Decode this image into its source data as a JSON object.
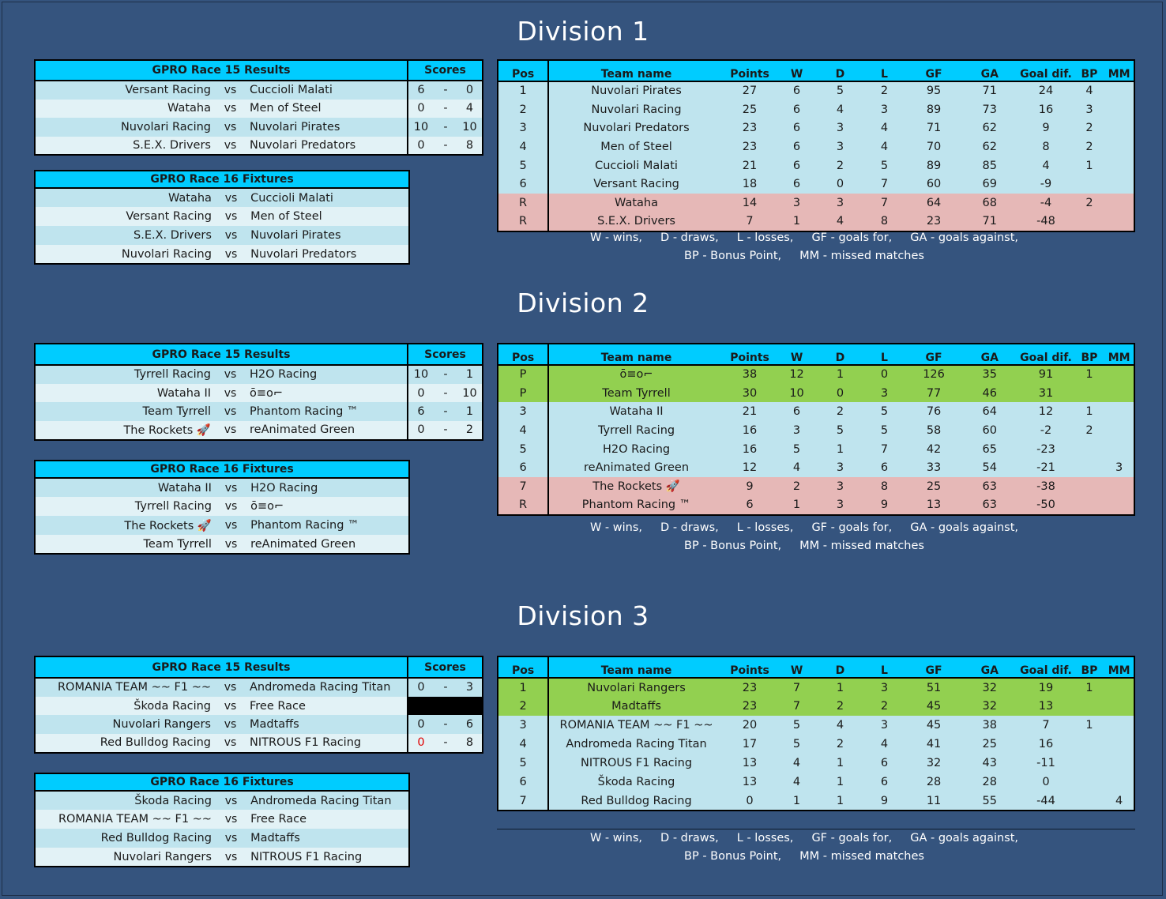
{
  "divisions": [
    {
      "title": "Division 1",
      "results": {
        "header": "GPRO Race 15  Results",
        "scores_header": "Scores",
        "rows": [
          {
            "home": "Versant Racing",
            "vs": "vs",
            "away": "Cuccioli Malati",
            "s1": "6",
            "dash": "-",
            "s2": "0"
          },
          {
            "home": "Wataha",
            "vs": "vs",
            "away": "Men of Steel",
            "s1": "0",
            "dash": "-",
            "s2": "4"
          },
          {
            "home": "Nuvolari Racing",
            "vs": "vs",
            "away": "Nuvolari Pirates",
            "s1": "10",
            "dash": "-",
            "s2": "10"
          },
          {
            "home": "S.E.X. Drivers",
            "vs": "vs",
            "away": "Nuvolari Predators",
            "s1": "0",
            "dash": "-",
            "s2": "8"
          }
        ]
      },
      "fixtures": {
        "header": "GPRO Race 16  Fixtures",
        "rows": [
          {
            "home": "Wataha",
            "vs": "vs",
            "away": "Cuccioli Malati"
          },
          {
            "home": "Versant Racing",
            "vs": "vs",
            "away": "Men of Steel"
          },
          {
            "home": "S.E.X. Drivers",
            "vs": "vs",
            "away": "Nuvolari Pirates"
          },
          {
            "home": "Nuvolari Racing",
            "vs": "vs",
            "away": "Nuvolari Predators"
          }
        ]
      },
      "standings": {
        "headers": [
          "Pos",
          "Team name",
          "Points",
          "W",
          "D",
          "L",
          "GF",
          "GA",
          "Goal dif.",
          "BP",
          "MM"
        ],
        "rows": [
          {
            "status": "normal",
            "cells": [
              "1",
              "Nuvolari Pirates",
              "27",
              "6",
              "5",
              "2",
              "95",
              "71",
              "24",
              "4",
              ""
            ]
          },
          {
            "status": "normal",
            "cells": [
              "2",
              "Nuvolari Racing",
              "25",
              "6",
              "4",
              "3",
              "89",
              "73",
              "16",
              "3",
              ""
            ]
          },
          {
            "status": "normal",
            "cells": [
              "3",
              "Nuvolari Predators",
              "23",
              "6",
              "3",
              "4",
              "71",
              "62",
              "9",
              "2",
              ""
            ]
          },
          {
            "status": "normal",
            "cells": [
              "4",
              "Men of Steel",
              "23",
              "6",
              "3",
              "4",
              "70",
              "62",
              "8",
              "2",
              ""
            ]
          },
          {
            "status": "normal",
            "cells": [
              "5",
              "Cuccioli Malati",
              "21",
              "6",
              "2",
              "5",
              "89",
              "85",
              "4",
              "1",
              ""
            ]
          },
          {
            "status": "normal",
            "cells": [
              "6",
              "Versant Racing",
              "18",
              "6",
              "0",
              "7",
              "60",
              "69",
              "-9",
              "",
              ""
            ]
          },
          {
            "status": "releg",
            "cells": [
              "R",
              "Wataha",
              "14",
              "3",
              "3",
              "7",
              "64",
              "68",
              "-4",
              "2",
              ""
            ]
          },
          {
            "status": "releg",
            "cells": [
              "R",
              "S.E.X. Drivers",
              "7",
              "1",
              "4",
              "8",
              "23",
              "71",
              "-48",
              "",
              ""
            ]
          }
        ]
      },
      "legend": [
        "W - wins,     D - draws,     L - losses,     GF - goals for,     GA - goals against,",
        "BP - Bonus Point,     MM - missed matches"
      ]
    },
    {
      "title": "Division 2",
      "results": {
        "header": "GPRO Race 15  Results",
        "scores_header": "Scores",
        "rows": [
          {
            "home": "Tyrrell Racing",
            "vs": "vs",
            "away": "H2O Racing",
            "s1": "10",
            "dash": "-",
            "s2": "1"
          },
          {
            "home": "Wataha II",
            "vs": "vs",
            "away": "ō≡o⌐",
            "s1": "0",
            "dash": "-",
            "s2": "10"
          },
          {
            "home": "Team Tyrrell",
            "vs": "vs",
            "away": "Phantom Racing ™",
            "s1": "6",
            "dash": "-",
            "s2": "1"
          },
          {
            "home": "The Rockets 🚀",
            "vs": "vs",
            "away": "reAnimated Green",
            "s1": "0",
            "dash": "-",
            "s2": "2"
          }
        ]
      },
      "fixtures": {
        "header": "GPRO Race 16  Fixtures",
        "rows": [
          {
            "home": "Wataha II",
            "vs": "vs",
            "away": "H2O Racing"
          },
          {
            "home": "Tyrrell Racing",
            "vs": "vs",
            "away": "ō≡o⌐"
          },
          {
            "home": "The Rockets 🚀",
            "vs": "vs",
            "away": "Phantom Racing ™"
          },
          {
            "home": "Team Tyrrell",
            "vs": "vs",
            "away": "reAnimated Green"
          }
        ]
      },
      "standings": {
        "headers": [
          "Pos",
          "Team name",
          "Points",
          "W",
          "D",
          "L",
          "GF",
          "GA",
          "Goal dif.",
          "BP",
          "MM"
        ],
        "rows": [
          {
            "status": "promo",
            "cells": [
              "P",
              "ō≡o⌐",
              "38",
              "12",
              "1",
              "0",
              "126",
              "35",
              "91",
              "1",
              ""
            ]
          },
          {
            "status": "promo",
            "cells": [
              "P",
              "Team Tyrrell",
              "30",
              "10",
              "0",
              "3",
              "77",
              "46",
              "31",
              "",
              ""
            ]
          },
          {
            "status": "normal",
            "cells": [
              "3",
              "Wataha II",
              "21",
              "6",
              "2",
              "5",
              "76",
              "64",
              "12",
              "1",
              ""
            ]
          },
          {
            "status": "normal",
            "cells": [
              "4",
              "Tyrrell Racing",
              "16",
              "3",
              "5",
              "5",
              "58",
              "60",
              "-2",
              "2",
              ""
            ]
          },
          {
            "status": "normal",
            "cells": [
              "5",
              "H2O Racing",
              "16",
              "5",
              "1",
              "7",
              "42",
              "65",
              "-23",
              "",
              ""
            ]
          },
          {
            "status": "normal",
            "cells": [
              "6",
              "reAnimated Green",
              "12",
              "4",
              "3",
              "6",
              "33",
              "54",
              "-21",
              "",
              "3"
            ]
          },
          {
            "status": "releg",
            "cells": [
              "7",
              "The Rockets 🚀",
              "9",
              "2",
              "3",
              "8",
              "25",
              "63",
              "-38",
              "",
              ""
            ]
          },
          {
            "status": "releg",
            "cells": [
              "R",
              "Phantom Racing ™",
              "6",
              "1",
              "3",
              "9",
              "13",
              "63",
              "-50",
              "",
              ""
            ]
          }
        ]
      },
      "legend": [
        "W - wins,     D - draws,     L - losses,     GF - goals for,     GA - goals against,",
        "BP - Bonus Point,     MM - missed matches"
      ]
    },
    {
      "title": "Division 3",
      "results": {
        "header": "GPRO Race 15  Results",
        "scores_header": "Scores",
        "rows": [
          {
            "home": "ROMANIA TEAM ~~ F1 ~~",
            "vs": "vs",
            "away": "Andromeda Racing Titan",
            "s1": "0",
            "dash": "-",
            "s2": "3"
          },
          {
            "home": "Škoda Racing",
            "vs": "vs",
            "away": "Free Race",
            "s1": "",
            "dash": "",
            "s2": "",
            "blank": true
          },
          {
            "home": "Nuvolari Rangers",
            "vs": "vs",
            "away": "Madtaffs",
            "s1": "0",
            "dash": "-",
            "s2": "6"
          },
          {
            "home": "Red Bulldog Racing",
            "vs": "vs",
            "away": "NITROUS F1 Racing",
            "s1": "0",
            "dash": "-",
            "s2": "8",
            "s1_red": true
          }
        ]
      },
      "fixtures": {
        "header": "GPRO Race 16  Fixtures",
        "rows": [
          {
            "home": "Škoda Racing",
            "vs": "vs",
            "away": "Andromeda Racing Titan"
          },
          {
            "home": "ROMANIA TEAM ~~ F1 ~~",
            "vs": "vs",
            "away": "Free Race"
          },
          {
            "home": "Red Bulldog Racing",
            "vs": "vs",
            "away": "Madtaffs"
          },
          {
            "home": "Nuvolari Rangers",
            "vs": "vs",
            "away": "NITROUS F1 Racing"
          }
        ]
      },
      "standings": {
        "headers": [
          "Pos",
          "Team name",
          "Points",
          "W",
          "D",
          "L",
          "GF",
          "GA",
          "Goal dif.",
          "BP",
          "MM"
        ],
        "rows": [
          {
            "status": "promo",
            "cells": [
              "1",
              "Nuvolari Rangers",
              "23",
              "7",
              "1",
              "3",
              "51",
              "32",
              "19",
              "1",
              ""
            ]
          },
          {
            "status": "promo",
            "cells": [
              "2",
              "Madtaffs",
              "23",
              "7",
              "2",
              "2",
              "45",
              "32",
              "13",
              "",
              ""
            ]
          },
          {
            "status": "normal",
            "cells": [
              "3",
              "ROMANIA TEAM ~~ F1 ~~",
              "20",
              "5",
              "4",
              "3",
              "45",
              "38",
              "7",
              "1",
              ""
            ]
          },
          {
            "status": "normal",
            "cells": [
              "4",
              "Andromeda Racing Titan",
              "17",
              "5",
              "2",
              "4",
              "41",
              "25",
              "16",
              "",
              ""
            ]
          },
          {
            "status": "normal",
            "cells": [
              "5",
              "NITROUS F1 Racing",
              "13",
              "4",
              "1",
              "6",
              "32",
              "43",
              "-11",
              "",
              ""
            ]
          },
          {
            "status": "normal",
            "cells": [
              "6",
              "Škoda Racing",
              "13",
              "4",
              "1",
              "6",
              "28",
              "28",
              "0",
              "",
              ""
            ]
          },
          {
            "status": "normal",
            "cells": [
              "7",
              "Red Bulldog Racing",
              "0",
              "1",
              "1",
              "9",
              "11",
              "55",
              "-44",
              "",
              "4"
            ]
          }
        ]
      },
      "legend": [
        "W - wins,     D - draws,     L - losses,     GF - goals for,     GA - goals against,",
        "BP - Bonus Point,     MM - missed matches"
      ]
    }
  ],
  "colors": {
    "background": "#35547e",
    "header": "#00ccff",
    "row_light": "#bfe4ee",
    "row_lighter": "#e2f2f6",
    "promotion": "#92d050",
    "relegation": "#e6b8b7"
  }
}
